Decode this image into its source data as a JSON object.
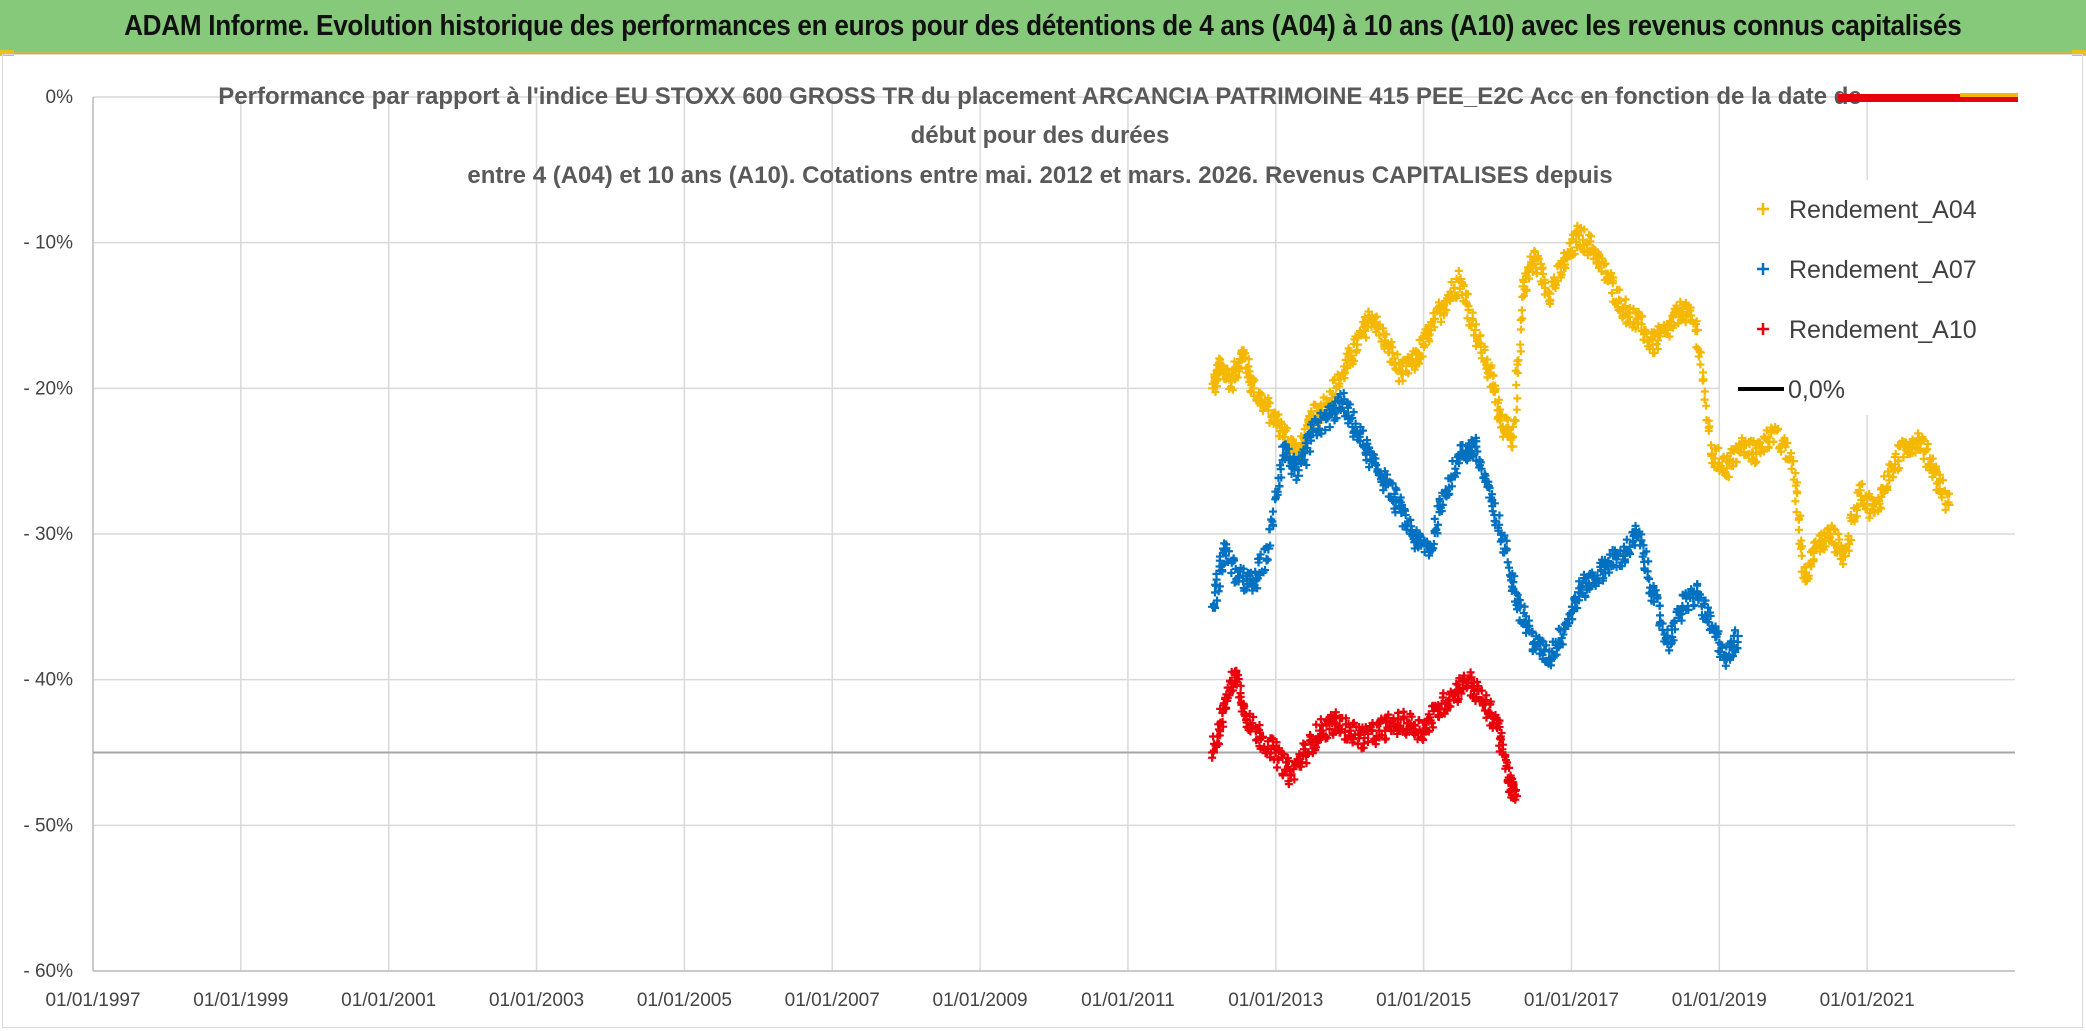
{
  "header": {
    "title": "ADAM Informe. Evolution historique des performances en euros pour des détentions de 4 ans (A04) à 10 ans (A10) avec les revenus connus capitalisés"
  },
  "chart_data": {
    "type": "scatter",
    "title_lines": [
      "Performance par rapport à l'indice EU STOXX 600 GROSS TR  du placement ARCANCIA PATRIMOINE 415 PEE_E2C Acc en fonction de la date de",
      "début pour des durées",
      "entre 4 (A04) et 10 ans (A10). Cotations entre mai. 2012 et mars. 2026. Revenus CAPITALISES depuis"
    ],
    "x_tick_labels": [
      "01/01/1997",
      "01/01/1999",
      "01/01/2001",
      "01/01/2003",
      "01/01/2005",
      "01/01/2007",
      "01/01/2009",
      "01/01/2011",
      "01/01/2013",
      "01/01/2015",
      "01/01/2017",
      "01/01/2019",
      "01/01/2021"
    ],
    "xlim": [
      1997.0,
      2023.0
    ],
    "y_tick_labels": [
      "0%",
      "- 10%",
      "- 20%",
      "- 30%",
      "- 40%",
      "- 50%",
      "- 60%"
    ],
    "ylim": [
      -60,
      0
    ],
    "reference_line_y": -45,
    "grid": true,
    "legend": {
      "placement": "right"
    },
    "series": [
      {
        "name": "Rendement_A04",
        "color": "#f5b800",
        "marker": "+",
        "points": [
          [
            2012.15,
            -20
          ],
          [
            2012.25,
            -18.5
          ],
          [
            2012.4,
            -19.5
          ],
          [
            2012.55,
            -17.5
          ],
          [
            2012.7,
            -20
          ],
          [
            2012.9,
            -21.5
          ],
          [
            2013.1,
            -23
          ],
          [
            2013.3,
            -24.5
          ],
          [
            2013.5,
            -22
          ],
          [
            2013.7,
            -21
          ],
          [
            2013.9,
            -19
          ],
          [
            2014.1,
            -17
          ],
          [
            2014.3,
            -15
          ],
          [
            2014.5,
            -17
          ],
          [
            2014.7,
            -19
          ],
          [
            2014.9,
            -18
          ],
          [
            2015.1,
            -16
          ],
          [
            2015.3,
            -14
          ],
          [
            2015.5,
            -12.5
          ],
          [
            2015.7,
            -16
          ],
          [
            2015.9,
            -19
          ],
          [
            2016.05,
            -22
          ],
          [
            2016.2,
            -24
          ],
          [
            2016.35,
            -13
          ],
          [
            2016.5,
            -11
          ],
          [
            2016.7,
            -13.5
          ],
          [
            2016.9,
            -11.5
          ],
          [
            2017.1,
            -9.5
          ],
          [
            2017.3,
            -10.5
          ],
          [
            2017.5,
            -12.5
          ],
          [
            2017.7,
            -14.5
          ],
          [
            2017.9,
            -15.5
          ],
          [
            2018.1,
            -17
          ],
          [
            2018.3,
            -16
          ],
          [
            2018.5,
            -14.5
          ],
          [
            2018.7,
            -16
          ],
          [
            2018.9,
            -24.5
          ],
          [
            2019.1,
            -25.5
          ],
          [
            2019.3,
            -24
          ],
          [
            2019.5,
            -24.5
          ],
          [
            2019.7,
            -23
          ],
          [
            2020.0,
            -25
          ],
          [
            2020.15,
            -33
          ],
          [
            2020.3,
            -31
          ],
          [
            2020.5,
            -30
          ],
          [
            2020.7,
            -31.5
          ],
          [
            2020.9,
            -27
          ],
          [
            2021.1,
            -28.5
          ],
          [
            2021.3,
            -26
          ],
          [
            2021.5,
            -24
          ],
          [
            2021.7,
            -23.5
          ],
          [
            2021.9,
            -25.5
          ],
          [
            2022.1,
            -28
          ]
        ]
      },
      {
        "name": "Rendement_A07",
        "color": "#0070c0",
        "marker": "+",
        "points": [
          [
            2012.15,
            -35
          ],
          [
            2012.3,
            -31
          ],
          [
            2012.5,
            -33
          ],
          [
            2012.7,
            -33.5
          ],
          [
            2012.9,
            -31
          ],
          [
            2013.1,
            -24
          ],
          [
            2013.3,
            -26
          ],
          [
            2013.5,
            -23
          ],
          [
            2013.7,
            -22
          ],
          [
            2013.9,
            -21
          ],
          [
            2014.1,
            -23
          ],
          [
            2014.3,
            -25
          ],
          [
            2014.5,
            -26.5
          ],
          [
            2014.7,
            -28.5
          ],
          [
            2014.9,
            -30.5
          ],
          [
            2015.1,
            -31
          ],
          [
            2015.3,
            -27
          ],
          [
            2015.5,
            -24.5
          ],
          [
            2015.7,
            -24
          ],
          [
            2015.9,
            -27.5
          ],
          [
            2016.1,
            -31
          ],
          [
            2016.3,
            -35
          ],
          [
            2016.5,
            -37.5
          ],
          [
            2016.7,
            -38.5
          ],
          [
            2016.9,
            -36.5
          ],
          [
            2017.1,
            -34
          ],
          [
            2017.3,
            -33
          ],
          [
            2017.5,
            -32
          ],
          [
            2017.7,
            -31.5
          ],
          [
            2017.9,
            -30
          ],
          [
            2018.1,
            -34
          ],
          [
            2018.3,
            -37.5
          ],
          [
            2018.5,
            -35
          ],
          [
            2018.7,
            -34
          ],
          [
            2018.9,
            -36.5
          ],
          [
            2019.1,
            -38.5
          ],
          [
            2019.25,
            -37
          ]
        ]
      },
      {
        "name": "Rendement_A10",
        "color": "#e8000b",
        "marker": "+",
        "points": [
          [
            2012.15,
            -45
          ],
          [
            2012.3,
            -42
          ],
          [
            2012.45,
            -39.5
          ],
          [
            2012.6,
            -42.5
          ],
          [
            2012.8,
            -44
          ],
          [
            2013.0,
            -45
          ],
          [
            2013.2,
            -46.5
          ],
          [
            2013.4,
            -45
          ],
          [
            2013.6,
            -43.5
          ],
          [
            2013.8,
            -43
          ],
          [
            2014.0,
            -43.5
          ],
          [
            2014.2,
            -44
          ],
          [
            2014.4,
            -43.5
          ],
          [
            2014.6,
            -43
          ],
          [
            2014.8,
            -43
          ],
          [
            2015.0,
            -43.5
          ],
          [
            2015.2,
            -42
          ],
          [
            2015.4,
            -41
          ],
          [
            2015.6,
            -40
          ],
          [
            2015.8,
            -41.5
          ],
          [
            2016.0,
            -43
          ],
          [
            2016.15,
            -47
          ],
          [
            2016.25,
            -48
          ]
        ]
      },
      {
        "name": "0,0%",
        "color": "#000000",
        "marker": "line",
        "points": []
      }
    ]
  }
}
